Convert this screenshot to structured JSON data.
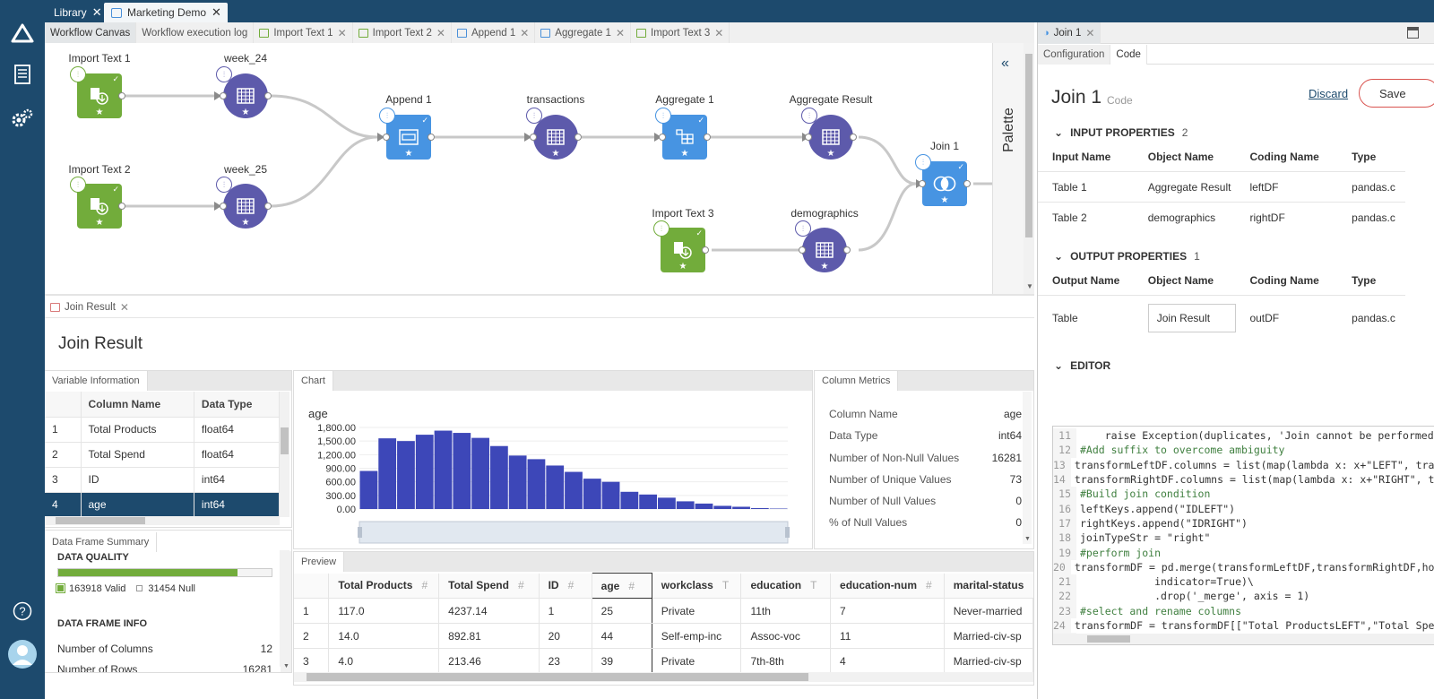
{
  "top_tabs": [
    {
      "label": "Library"
    },
    {
      "label": "Marketing Demo"
    }
  ],
  "canvas_tabs": [
    "Workflow Canvas",
    "Workflow execution log",
    "Import Text 1",
    "Import Text 2",
    "Append 1",
    "Aggregate 1",
    "Import Text 3"
  ],
  "palette_label": "Palette",
  "nodes": {
    "import1": "Import Text 1",
    "week24": "week_24",
    "import2": "Import Text 2",
    "week25": "week_25",
    "append1": "Append 1",
    "transactions": "transactions",
    "aggregate1": "Aggregate 1",
    "aggresult": "Aggregate Result",
    "import3": "Import Text 3",
    "demographics": "demographics",
    "join1": "Join 1"
  },
  "result_tab": "Join Result",
  "result_title": "Join Result",
  "variable_info": {
    "tab": "Variable Information",
    "headers": [
      "Column Name",
      "Data Type"
    ],
    "rows": [
      {
        "n": "1",
        "name": "Total Products",
        "type": "float64"
      },
      {
        "n": "2",
        "name": "Total Spend",
        "type": "float64"
      },
      {
        "n": "3",
        "name": "ID",
        "type": "int64"
      },
      {
        "n": "4",
        "name": "age",
        "type": "int64"
      }
    ]
  },
  "summary": {
    "tab": "Data Frame Summary",
    "quality_title": "DATA QUALITY",
    "quality_fraction": 0.839,
    "valid": "163918 Valid",
    "null": "31454 Null",
    "info_title": "DATA FRAME INFO",
    "columns_label": "Number of Columns",
    "columns_value": "12",
    "rows_label": "Number of Rows",
    "rows_value": "16281"
  },
  "chart_tab": "Chart",
  "chart_data": {
    "type": "bar",
    "ylabel": "age",
    "yticks": [
      "0.00",
      "300.00",
      "600.00",
      "900.00",
      "1,200.00",
      "1,500.00",
      "1,800.00"
    ],
    "ylim": [
      0,
      1800
    ],
    "values": [
      840,
      1560,
      1500,
      1640,
      1730,
      1680,
      1570,
      1390,
      1180,
      1100,
      960,
      820,
      670,
      600,
      380,
      320,
      250,
      170,
      120,
      70,
      50,
      20,
      10
    ],
    "color": "#3d47b8"
  },
  "metrics": {
    "tab": "Column Metrics",
    "items": [
      {
        "label": "Column Name",
        "value": "age"
      },
      {
        "label": "Data Type",
        "value": "int64"
      },
      {
        "label": "Number of Non-Null Values",
        "value": "16281"
      },
      {
        "label": "Number of Unique Values",
        "value": "73"
      },
      {
        "label": "Number of Null Values",
        "value": "0"
      },
      {
        "label": "% of Null Values",
        "value": "0"
      }
    ]
  },
  "preview": {
    "tab": "Preview",
    "headers": [
      "Total Products",
      "Total Spend",
      "ID",
      "age",
      "workclass",
      "education",
      "education-num",
      "marital-status"
    ],
    "rows": [
      [
        "1",
        "117.0",
        "4237.14",
        "1",
        "25",
        "Private",
        "11th",
        "7",
        "Never-married"
      ],
      [
        "2",
        "14.0",
        "892.81",
        "20",
        "44",
        "Self-emp-inc",
        "Assoc-voc",
        "11",
        "Married-civ-sp"
      ],
      [
        "3",
        "4.0",
        "213.46",
        "23",
        "39",
        "Private",
        "7th-8th",
        "4",
        "Married-civ-sp"
      ]
    ]
  },
  "right": {
    "tab": "Join 1",
    "subtabs": [
      "Configuration",
      "Code"
    ],
    "title": "Join 1",
    "subtitle": "Code",
    "discard": "Discard",
    "save": "Save",
    "input_title": "INPUT PROPERTIES",
    "input_count": "2",
    "input_headers": [
      "Input Name",
      "Object Name",
      "Coding Name",
      "Type"
    ],
    "input_rows": [
      [
        "Table 1",
        "Aggregate Result",
        "leftDF",
        "pandas.c"
      ],
      [
        "Table 2",
        "demographics",
        "rightDF",
        "pandas.c"
      ]
    ],
    "output_title": "OUTPUT PROPERTIES",
    "output_count": "1",
    "output_headers": [
      "Output Name",
      "Object Name",
      "Coding Name",
      "Type"
    ],
    "output_rows": [
      [
        "Table",
        "Join Result",
        "outDF",
        "pandas.c"
      ]
    ],
    "editor_title": "EDITOR",
    "code": [
      {
        "n": "11",
        "t": "    raise Exception(duplicates, 'Join cannot be performed",
        "c": false
      },
      {
        "n": "12",
        "t": "#Add suffix to overcome ambiguity",
        "c": true
      },
      {
        "n": "13",
        "t": "transformLeftDF.columns = list(map(lambda x: x+\"LEFT\", tra",
        "c": false
      },
      {
        "n": "14",
        "t": "transformRightDF.columns = list(map(lambda x: x+\"RIGHT\", t",
        "c": false
      },
      {
        "n": "15",
        "t": "#Build join condition",
        "c": true
      },
      {
        "n": "16",
        "t": "leftKeys.append(\"IDLEFT\")",
        "c": false
      },
      {
        "n": "17",
        "t": "rightKeys.append(\"IDRIGHT\")",
        "c": false
      },
      {
        "n": "18",
        "t": "joinTypeStr = \"right\"",
        "c": false
      },
      {
        "n": "19",
        "t": "#perform join",
        "c": true
      },
      {
        "n": "20",
        "t": "transformDF = pd.merge(transformLeftDF,transformRightDF,how",
        "c": false
      },
      {
        "n": "21",
        "t": "            indicator=True)\\",
        "c": false
      },
      {
        "n": "22",
        "t": "            .drop('_merge', axis = 1)",
        "c": false
      },
      {
        "n": "23",
        "t": "#select and rename columns",
        "c": true
      },
      {
        "n": "24",
        "t": "transformDF = transformDF[[\"Total ProductsLEFT\",\"Total Spe",
        "c": false
      },
      {
        "n": "25",
        "t": "",
        "c": false
      }
    ]
  }
}
